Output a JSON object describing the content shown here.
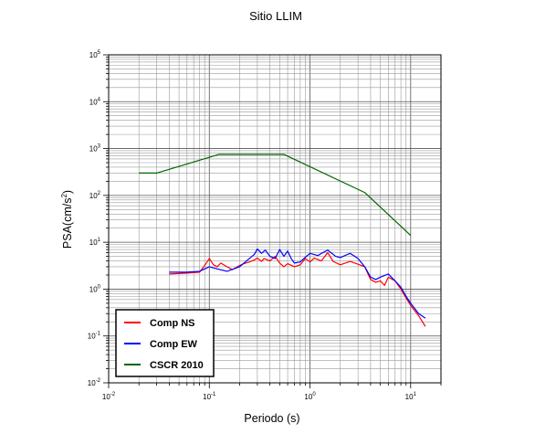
{
  "chart_data": {
    "type": "line",
    "title": "Sitio LLIM",
    "xlabel": "Periodo (s)",
    "ylabel_base": "PSA(cm/s",
    "ylabel_sup": "2",
    "ylabel_end": ")",
    "x_scale": "log",
    "y_scale": "log",
    "xlim": [
      0.01,
      20
    ],
    "ylim": [
      0.01,
      100000
    ],
    "x_ticks": [
      {
        "value": 0.01,
        "base": "10",
        "exp": "-2"
      },
      {
        "value": 0.1,
        "base": "10",
        "exp": "-1"
      },
      {
        "value": 1,
        "base": "10",
        "exp": "0"
      },
      {
        "value": 10,
        "base": "10",
        "exp": "1"
      }
    ],
    "y_ticks": [
      {
        "value": 0.01,
        "base": "10",
        "exp": "-2"
      },
      {
        "value": 0.1,
        "base": "10",
        "exp": "-1"
      },
      {
        "value": 1,
        "base": "10",
        "exp": "0"
      },
      {
        "value": 10,
        "base": "10",
        "exp": "1"
      },
      {
        "value": 100,
        "base": "10",
        "exp": "2"
      },
      {
        "value": 1000,
        "base": "10",
        "exp": "3"
      },
      {
        "value": 10000,
        "base": "10",
        "exp": "4"
      },
      {
        "value": 100000,
        "base": "10",
        "exp": "5"
      }
    ],
    "grid": true,
    "legend_position": "bottom-left",
    "series": [
      {
        "name": "Comp NS",
        "color": "#ff0000",
        "points": [
          [
            0.04,
            2.1
          ],
          [
            0.06,
            2.2
          ],
          [
            0.08,
            2.3
          ],
          [
            0.09,
            3.2
          ],
          [
            0.1,
            4.5
          ],
          [
            0.11,
            3.3
          ],
          [
            0.12,
            3.0
          ],
          [
            0.13,
            3.6
          ],
          [
            0.15,
            3.0
          ],
          [
            0.17,
            2.6
          ],
          [
            0.2,
            3.2
          ],
          [
            0.22,
            3.5
          ],
          [
            0.25,
            3.8
          ],
          [
            0.28,
            4.2
          ],
          [
            0.3,
            4.6
          ],
          [
            0.33,
            3.9
          ],
          [
            0.35,
            4.5
          ],
          [
            0.4,
            4.0
          ],
          [
            0.45,
            5.0
          ],
          [
            0.5,
            3.6
          ],
          [
            0.55,
            3.0
          ],
          [
            0.6,
            3.5
          ],
          [
            0.7,
            3.0
          ],
          [
            0.8,
            3.3
          ],
          [
            0.9,
            4.5
          ],
          [
            1.0,
            3.8
          ],
          [
            1.1,
            4.6
          ],
          [
            1.3,
            4.0
          ],
          [
            1.5,
            6.0
          ],
          [
            1.7,
            3.9
          ],
          [
            2.0,
            3.3
          ],
          [
            2.5,
            3.9
          ],
          [
            3.0,
            3.4
          ],
          [
            3.5,
            3.0
          ],
          [
            4.0,
            1.6
          ],
          [
            4.5,
            1.4
          ],
          [
            5.0,
            1.5
          ],
          [
            5.5,
            1.2
          ],
          [
            6.0,
            1.8
          ],
          [
            7.0,
            1.5
          ],
          [
            8.0,
            1.0
          ],
          [
            9.0,
            0.65
          ],
          [
            10.0,
            0.45
          ],
          [
            12.0,
            0.27
          ],
          [
            14.0,
            0.16
          ]
        ]
      },
      {
        "name": "Comp EW",
        "color": "#0000ff",
        "points": [
          [
            0.04,
            2.3
          ],
          [
            0.06,
            2.3
          ],
          [
            0.08,
            2.4
          ],
          [
            0.1,
            3.0
          ],
          [
            0.12,
            2.7
          ],
          [
            0.15,
            2.4
          ],
          [
            0.2,
            3.0
          ],
          [
            0.25,
            4.5
          ],
          [
            0.28,
            5.5
          ],
          [
            0.3,
            7.2
          ],
          [
            0.33,
            5.8
          ],
          [
            0.36,
            6.8
          ],
          [
            0.4,
            5.0
          ],
          [
            0.45,
            4.5
          ],
          [
            0.5,
            7.0
          ],
          [
            0.55,
            5.0
          ],
          [
            0.6,
            6.5
          ],
          [
            0.65,
            4.5
          ],
          [
            0.7,
            3.6
          ],
          [
            0.8,
            3.8
          ],
          [
            0.9,
            4.8
          ],
          [
            1.0,
            5.8
          ],
          [
            1.2,
            5.2
          ],
          [
            1.3,
            5.8
          ],
          [
            1.5,
            6.8
          ],
          [
            1.8,
            5.0
          ],
          [
            2.0,
            4.7
          ],
          [
            2.5,
            5.8
          ],
          [
            3.0,
            4.5
          ],
          [
            3.5,
            3.0
          ],
          [
            4.0,
            1.8
          ],
          [
            4.5,
            1.6
          ],
          [
            5.0,
            1.8
          ],
          [
            6.0,
            2.1
          ],
          [
            7.0,
            1.5
          ],
          [
            8.0,
            1.1
          ],
          [
            9.0,
            0.7
          ],
          [
            10.0,
            0.5
          ],
          [
            12.0,
            0.3
          ],
          [
            14.0,
            0.24
          ]
        ]
      },
      {
        "name": "CSCR 2010",
        "color": "#006400",
        "points": [
          [
            0.02,
            300
          ],
          [
            0.03,
            300
          ],
          [
            0.125,
            750
          ],
          [
            0.55,
            750
          ],
          [
            3.5,
            115
          ],
          [
            10.0,
            14
          ]
        ]
      }
    ]
  }
}
